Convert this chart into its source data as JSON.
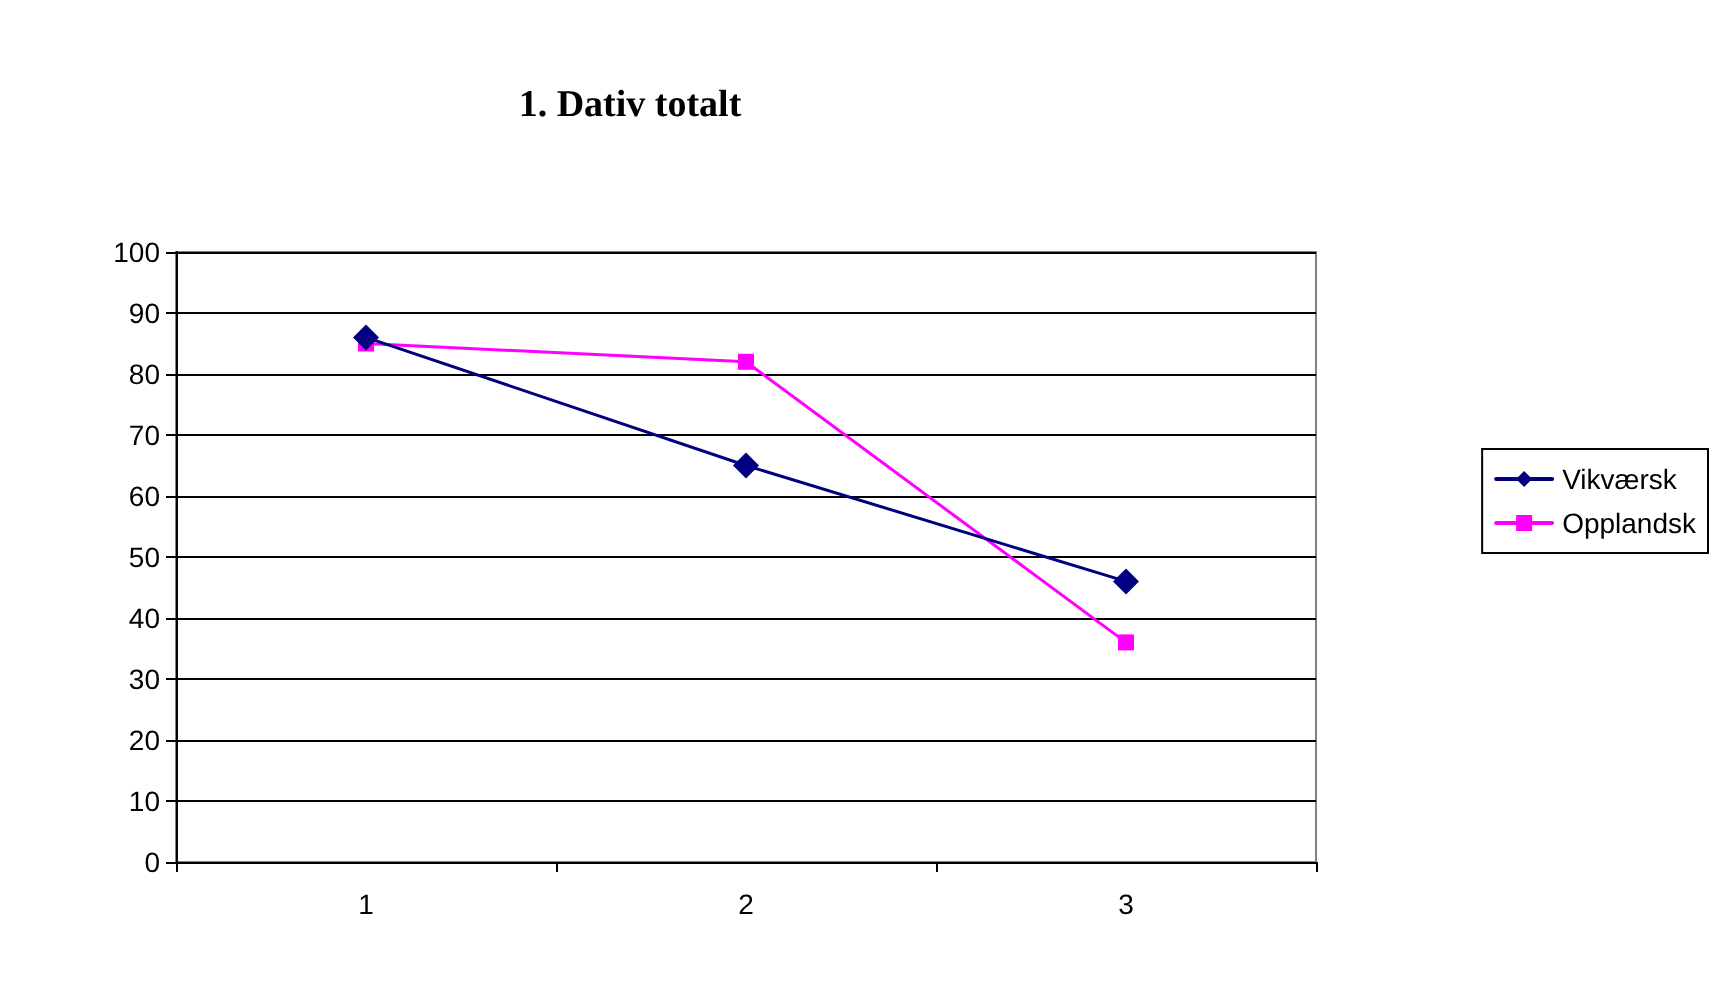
{
  "chart_data": {
    "type": "line",
    "title": "1. Dativ totalt",
    "categories": [
      "1",
      "2",
      "3"
    ],
    "series": [
      {
        "name": "Vikværsk",
        "color": "#000080",
        "values": [
          86,
          65,
          46
        ],
        "marker": "diamond"
      },
      {
        "name": "Opplandsk",
        "color": "#ff00ff",
        "values": [
          85,
          82,
          36
        ],
        "marker": "square"
      }
    ],
    "ylim": [
      0,
      100
    ],
    "yticks": [
      0,
      10,
      20,
      30,
      40,
      50,
      60,
      70,
      80,
      90,
      100
    ],
    "grid": "y",
    "legend": "right"
  }
}
